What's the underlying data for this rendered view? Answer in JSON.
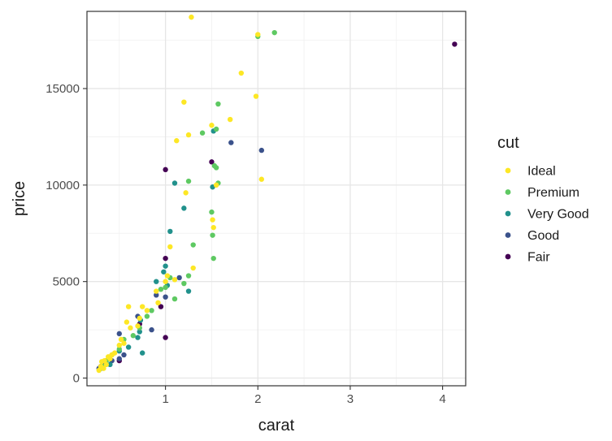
{
  "chart_data": {
    "type": "scatter",
    "xlabel": "carat",
    "ylabel": "price",
    "xlim": [
      0.15,
      4.25
    ],
    "ylim": [
      -400,
      19000
    ],
    "x_ticks": [
      1,
      2,
      3,
      4
    ],
    "y_ticks": [
      0,
      5000,
      10000,
      15000
    ],
    "x_tick_labels": [
      "1",
      "2",
      "3",
      "4"
    ],
    "y_tick_labels": [
      "0",
      "5000",
      "10000",
      "15000"
    ],
    "grid": true,
    "legend": {
      "title": "cut",
      "position": "right",
      "entries": [
        {
          "name": "Ideal",
          "color": "#fde725"
        },
        {
          "name": "Premium",
          "color": "#5ec962"
        },
        {
          "name": "Very Good",
          "color": "#21918c"
        },
        {
          "name": "Good",
          "color": "#3b528b"
        },
        {
          "name": "Fair",
          "color": "#440154"
        }
      ]
    },
    "series": [
      {
        "name": "Ideal",
        "color": "#fde725",
        "points": [
          [
            0.28,
            400
          ],
          [
            0.3,
            600
          ],
          [
            0.31,
            850
          ],
          [
            0.33,
            500
          ],
          [
            0.34,
            900
          ],
          [
            0.36,
            700
          ],
          [
            0.38,
            1100
          ],
          [
            0.4,
            1000
          ],
          [
            0.42,
            1200
          ],
          [
            0.45,
            1300
          ],
          [
            0.5,
            1700
          ],
          [
            0.52,
            2000
          ],
          [
            0.55,
            1800
          ],
          [
            0.58,
            2900
          ],
          [
            0.6,
            3700
          ],
          [
            0.62,
            2600
          ],
          [
            0.7,
            2700
          ],
          [
            0.72,
            3100
          ],
          [
            0.75,
            3700
          ],
          [
            0.8,
            3500
          ],
          [
            0.9,
            4500
          ],
          [
            0.92,
            3900
          ],
          [
            1.0,
            5000
          ],
          [
            1.02,
            5300
          ],
          [
            1.05,
            6800
          ],
          [
            1.1,
            5100
          ],
          [
            1.12,
            12300
          ],
          [
            1.2,
            14300
          ],
          [
            1.22,
            9600
          ],
          [
            1.25,
            12600
          ],
          [
            1.3,
            5700
          ],
          [
            1.5,
            13100
          ],
          [
            1.51,
            8200
          ],
          [
            1.52,
            7800
          ],
          [
            1.55,
            10000
          ],
          [
            1.7,
            13400
          ],
          [
            1.82,
            15800
          ],
          [
            1.98,
            14600
          ],
          [
            2.0,
            17800
          ],
          [
            2.04,
            10300
          ],
          [
            1.28,
            18700
          ]
        ]
      },
      {
        "name": "Premium",
        "color": "#5ec962",
        "points": [
          [
            0.32,
            600
          ],
          [
            0.36,
            900
          ],
          [
            0.42,
            1200
          ],
          [
            0.5,
            1500
          ],
          [
            0.55,
            2000
          ],
          [
            0.65,
            2200
          ],
          [
            0.72,
            2600
          ],
          [
            0.8,
            3200
          ],
          [
            0.85,
            3500
          ],
          [
            0.95,
            4600
          ],
          [
            1.0,
            4700
          ],
          [
            1.05,
            5200
          ],
          [
            1.1,
            4100
          ],
          [
            1.2,
            4900
          ],
          [
            1.25,
            5300
          ],
          [
            1.3,
            6900
          ],
          [
            1.4,
            12700
          ],
          [
            1.5,
            8600
          ],
          [
            1.51,
            7400
          ],
          [
            1.52,
            6200
          ],
          [
            1.53,
            11000
          ],
          [
            1.55,
            10900
          ],
          [
            1.57,
            14200
          ],
          [
            1.55,
            12900
          ],
          [
            1.57,
            10100
          ],
          [
            2.0,
            17700
          ],
          [
            2.18,
            17900
          ],
          [
            1.25,
            10200
          ]
        ]
      },
      {
        "name": "Very Good",
        "color": "#21918c",
        "points": [
          [
            0.3,
            500
          ],
          [
            0.4,
            700
          ],
          [
            0.5,
            1400
          ],
          [
            0.6,
            1600
          ],
          [
            0.7,
            2100
          ],
          [
            0.72,
            2400
          ],
          [
            0.73,
            3000
          ],
          [
            0.75,
            1300
          ],
          [
            0.9,
            5000
          ],
          [
            0.98,
            5500
          ],
          [
            1.0,
            5800
          ],
          [
            1.02,
            4800
          ],
          [
            1.05,
            7600
          ],
          [
            1.1,
            10100
          ],
          [
            1.2,
            8800
          ],
          [
            1.25,
            4500
          ],
          [
            1.51,
            9900
          ],
          [
            1.52,
            12800
          ]
        ]
      },
      {
        "name": "Good",
        "color": "#3b528b",
        "points": [
          [
            0.28,
            500
          ],
          [
            0.35,
            700
          ],
          [
            0.42,
            900
          ],
          [
            0.5,
            1000
          ],
          [
            0.5,
            2300
          ],
          [
            0.55,
            1200
          ],
          [
            0.7,
            3200
          ],
          [
            0.85,
            2500
          ],
          [
            0.9,
            4300
          ],
          [
            1.0,
            4200
          ],
          [
            1.15,
            5200
          ],
          [
            1.71,
            12200
          ],
          [
            2.04,
            11800
          ]
        ]
      },
      {
        "name": "Fair",
        "color": "#440154",
        "points": [
          [
            0.3,
            600
          ],
          [
            0.5,
            900
          ],
          [
            0.72,
            2800
          ],
          [
            0.95,
            3700
          ],
          [
            1.0,
            10800
          ],
          [
            1.0,
            2100
          ],
          [
            1.0,
            6200
          ],
          [
            1.5,
            11200
          ],
          [
            4.13,
            17300
          ]
        ]
      }
    ]
  }
}
